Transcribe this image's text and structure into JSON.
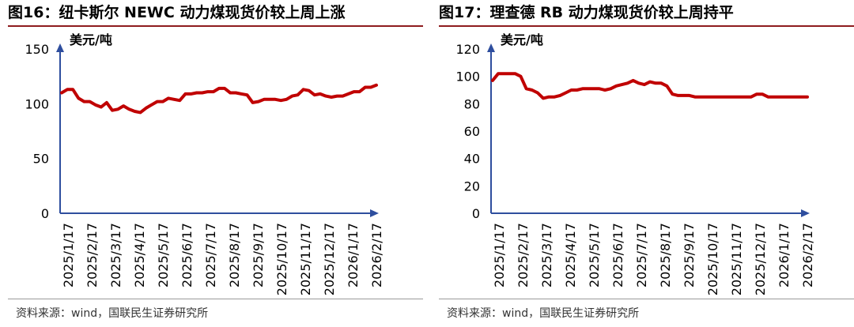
{
  "chart_data": [
    {
      "type": "line",
      "title": "图16：纽卡斯尔 NEWC 动力煤现货价较上周上涨",
      "source": "资料来源：wind，国联民生证券研究所",
      "unit_label": "美元/吨",
      "ylim": [
        0,
        150
      ],
      "yticks": [
        0,
        50,
        100,
        150
      ],
      "xlim": [
        0,
        56
      ],
      "x_tick_labels": [
        "2025/1/17",
        "2025/2/17",
        "2025/3/17",
        "2025/4/17",
        "2025/5/17",
        "2025/6/17",
        "2025/7/17",
        "2025/8/17",
        "2025/9/17",
        "2025/10/17",
        "2025/11/17",
        "2025/12/17",
        "2026/1/17",
        "2026/2/17"
      ],
      "line_color": "#c00000",
      "grid": false,
      "series": [
        {
          "values": [
            110,
            113,
            113,
            105,
            102,
            102,
            99,
            97,
            101,
            94,
            95,
            98,
            95,
            93,
            92,
            96,
            99,
            102,
            102,
            105,
            104,
            103,
            109,
            109,
            110,
            110,
            111,
            111,
            114,
            114,
            110,
            110,
            109,
            108,
            101,
            102,
            104,
            104,
            104,
            103,
            104,
            107,
            108,
            113,
            112,
            108,
            109,
            107,
            106,
            107,
            107,
            109,
            111,
            111,
            115,
            115,
            117
          ]
        }
      ]
    },
    {
      "type": "line",
      "title": "图17：理查德 RB 动力煤现货价较上周持平",
      "source": "资料来源：wind，国联民生证券研究所",
      "unit_label": "美元/吨",
      "ylim": [
        0,
        120
      ],
      "yticks": [
        0,
        20,
        40,
        60,
        80,
        100,
        120
      ],
      "xlim": [
        0,
        56
      ],
      "x_tick_labels": [
        "2025/1/17",
        "2025/2/17",
        "2025/3/17",
        "2025/4/17",
        "2025/5/17",
        "2025/6/17",
        "2025/7/17",
        "2025/8/17",
        "2025/9/17",
        "2025/10/17",
        "2025/11/17",
        "2025/12/17",
        "2026/1/17",
        "2026/2/17"
      ],
      "line_color": "#c00000",
      "grid": false,
      "series": [
        {
          "values": [
            97,
            102,
            102,
            102,
            102,
            100,
            91,
            90,
            88,
            84,
            85,
            85,
            86,
            88,
            90,
            90,
            91,
            91,
            91,
            91,
            90,
            91,
            93,
            94,
            95,
            97,
            95,
            94,
            96,
            95,
            95,
            93,
            87,
            86,
            86,
            86,
            85,
            85,
            85,
            85,
            85,
            85,
            85,
            85,
            85,
            85,
            85,
            87,
            87,
            85,
            85,
            85,
            85,
            85,
            85,
            85,
            85
          ]
        }
      ]
    }
  ]
}
